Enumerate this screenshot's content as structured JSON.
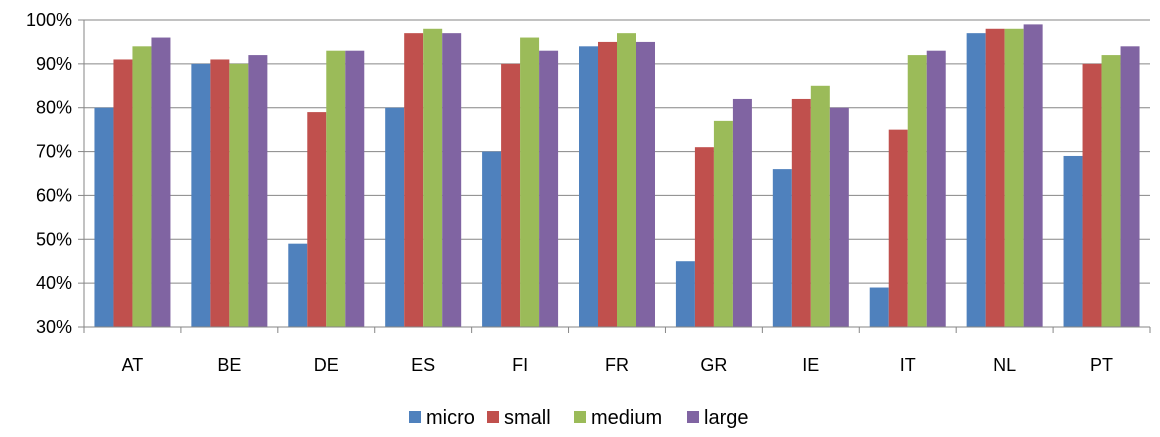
{
  "chart_data": {
    "type": "bar",
    "categories": [
      "AT",
      "BE",
      "DE",
      "ES",
      "FI",
      "FR",
      "GR",
      "IE",
      "IT",
      "NL",
      "PT"
    ],
    "series": [
      {
        "name": "micro",
        "color": "#4F81BD",
        "values": [
          80,
          90,
          49,
          80,
          70,
          94,
          45,
          66,
          39,
          97,
          69
        ]
      },
      {
        "name": "small",
        "color": "#C0504D",
        "values": [
          91,
          91,
          79,
          97,
          90,
          95,
          71,
          82,
          75,
          98,
          90
        ]
      },
      {
        "name": "medium",
        "color": "#9BBB59",
        "values": [
          94,
          90,
          93,
          98,
          96,
          97,
          77,
          85,
          92,
          98,
          92
        ]
      },
      {
        "name": "large",
        "color": "#8064A2",
        "values": [
          96,
          92,
          93,
          97,
          93,
          95,
          82,
          80,
          93,
          99,
          94
        ]
      }
    ],
    "ylim": [
      30,
      100
    ],
    "yticks": [
      30,
      40,
      50,
      60,
      70,
      80,
      90,
      100
    ],
    "ytick_labels": [
      "30%",
      "40%",
      "50%",
      "60%",
      "70%",
      "80%",
      "90%",
      "100%"
    ],
    "grid": true,
    "legend_position": "bottom",
    "title": "",
    "xlabel": "",
    "ylabel": ""
  }
}
